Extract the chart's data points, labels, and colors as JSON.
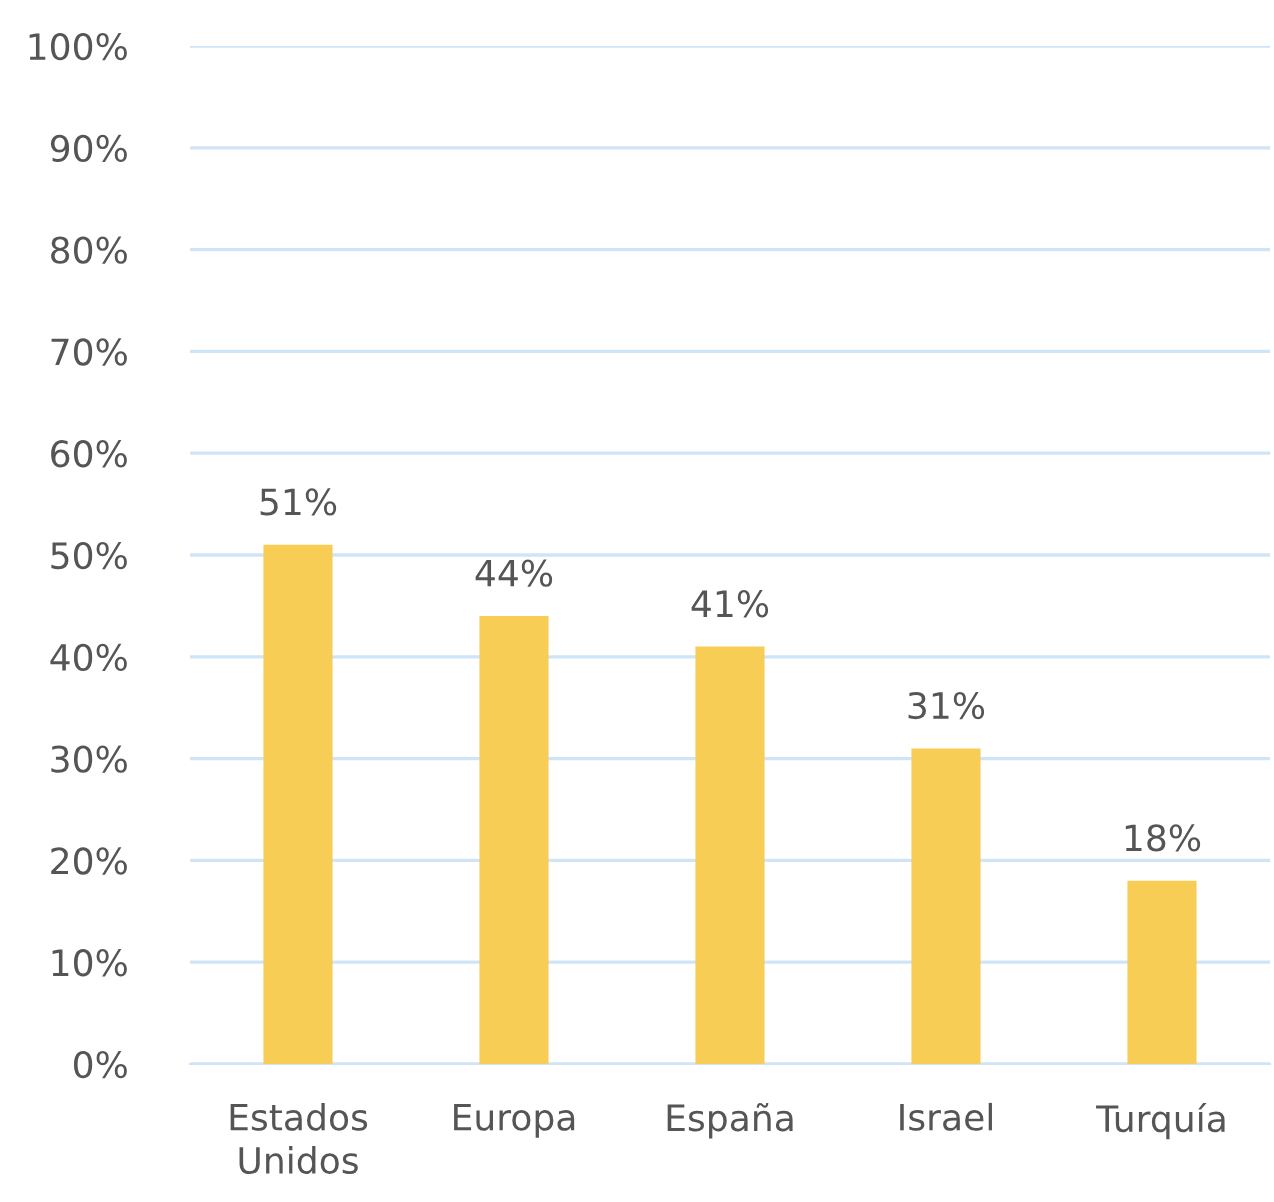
{
  "chart_data": {
    "type": "bar",
    "categories": [
      "Estados\nUnidos",
      "Europa",
      "España",
      "Israel",
      "Turquía"
    ],
    "values": [
      51,
      44,
      41,
      31,
      18
    ],
    "value_labels": [
      "51%",
      "44%",
      "41%",
      "31%",
      "18%"
    ],
    "color": "#f8cd55",
    "ylim": [
      0,
      100
    ],
    "yticks": [
      {
        "value": 0,
        "label": "0%"
      },
      {
        "value": 10,
        "label": "10%"
      },
      {
        "value": 20,
        "label": "20%"
      },
      {
        "value": 30,
        "label": "30%"
      },
      {
        "value": 40,
        "label": "40%"
      },
      {
        "value": 50,
        "label": "50%"
      },
      {
        "value": 60,
        "label": "60%"
      },
      {
        "value": 70,
        "label": "70%"
      },
      {
        "value": 80,
        "label": "80%"
      },
      {
        "value": 90,
        "label": "90%"
      },
      {
        "value": 100,
        "label": "100%"
      }
    ],
    "grid": "y"
  }
}
